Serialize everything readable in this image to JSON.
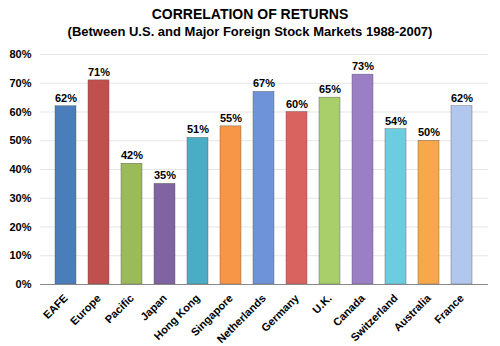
{
  "chart_data": {
    "type": "bar",
    "title": "CORRELATION OF RETURNS",
    "subtitle": "(Between U.S. and Major Foreign Stock Markets 1988-2007)",
    "categories": [
      "EAFE",
      "Europe",
      "Pacific",
      "Japan",
      "Hong Kong",
      "Singapore",
      "Netherlands",
      "Germany",
      "U.K.",
      "Canada",
      "Switzerland",
      "Australia",
      "France"
    ],
    "values": [
      62,
      71,
      42,
      35,
      51,
      55,
      67,
      60,
      65,
      73,
      54,
      50,
      62
    ],
    "value_labels": [
      "62%",
      "71%",
      "42%",
      "35%",
      "51%",
      "55%",
      "67%",
      "60%",
      "65%",
      "73%",
      "54%",
      "50%",
      "62%"
    ],
    "colors": [
      "#4a7ebb",
      "#c0504d",
      "#9bbb59",
      "#8064a2",
      "#4bacc6",
      "#f79646",
      "#6f93d8",
      "#d9645f",
      "#a8cf6a",
      "#9a7fc4",
      "#6ccde0",
      "#f8a84b",
      "#b2c7ee"
    ],
    "ylim": [
      0,
      80
    ],
    "yticks": [
      {
        "value": 0,
        "label": "0%"
      },
      {
        "value": 10,
        "label": "10%"
      },
      {
        "value": 20,
        "label": "20%"
      },
      {
        "value": 30,
        "label": "30%"
      },
      {
        "value": 40,
        "label": "40%"
      },
      {
        "value": 50,
        "label": "50%"
      },
      {
        "value": 60,
        "label": "60%"
      },
      {
        "value": 70,
        "label": "70%"
      },
      {
        "value": 80,
        "label": "80%"
      }
    ],
    "grid": true,
    "data_labels": true
  }
}
